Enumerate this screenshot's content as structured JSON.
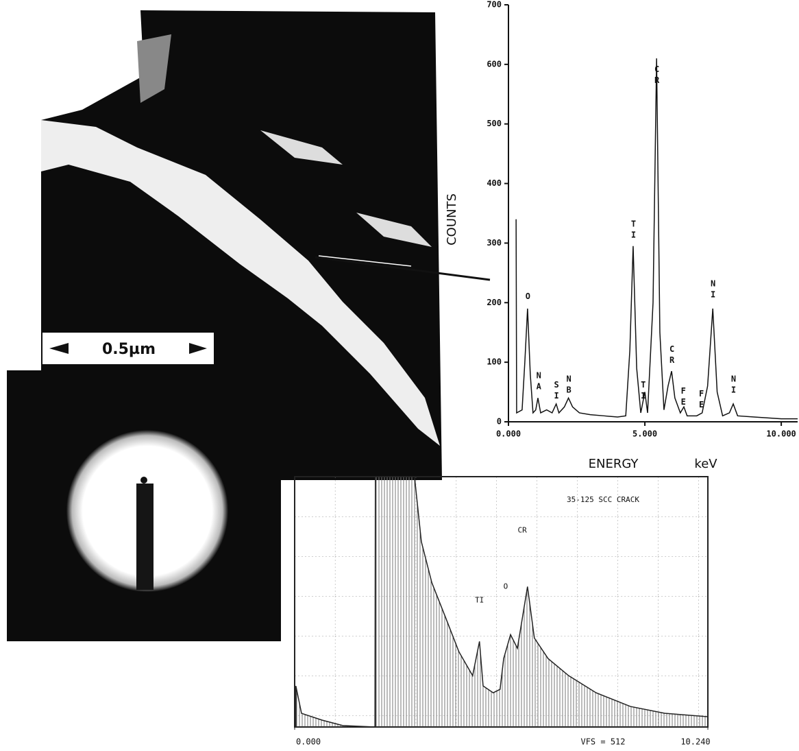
{
  "images": {
    "scale_bar_label": "0.5µm"
  },
  "chart_data": [
    {
      "type": "line",
      "ylabel": "COUNTS",
      "xlabel": "ENERGY",
      "xunit": "keV",
      "color": "#111111",
      "xlim": [
        0,
        10.6
      ],
      "ylim": [
        0,
        700
      ],
      "xticks": [
        {
          "value": 0,
          "label": "0.000"
        },
        {
          "value": 5,
          "label": "5.000"
        },
        {
          "value": 10,
          "label": "10.000"
        }
      ],
      "yticks": [
        0,
        100,
        200,
        300,
        400,
        500,
        600,
        700
      ],
      "x": [
        0.28,
        0.3,
        0.5,
        0.6,
        0.7,
        0.8,
        0.9,
        1.0,
        1.08,
        1.18,
        1.4,
        1.6,
        1.75,
        1.85,
        2.05,
        2.2,
        2.35,
        2.6,
        3.0,
        3.5,
        4.0,
        4.3,
        4.45,
        4.57,
        4.7,
        4.85,
        5.0,
        5.1,
        5.3,
        5.43,
        5.55,
        5.7,
        5.85,
        5.98,
        6.1,
        6.3,
        6.43,
        6.55,
        6.9,
        7.1,
        7.3,
        7.49,
        7.65,
        7.85,
        8.1,
        8.24,
        8.4,
        9.0,
        10.0,
        10.6
      ],
      "values": [
        340,
        15,
        20,
        100,
        190,
        80,
        15,
        20,
        40,
        15,
        20,
        15,
        30,
        15,
        25,
        40,
        25,
        15,
        12,
        10,
        8,
        10,
        120,
        295,
        90,
        15,
        50,
        15,
        200,
        610,
        150,
        20,
        60,
        85,
        40,
        15,
        25,
        10,
        10,
        15,
        60,
        190,
        50,
        10,
        15,
        30,
        10,
        8,
        5,
        5
      ],
      "annotations": [
        {
          "text": "O",
          "x": 0.7,
          "y": 219
        },
        {
          "text": "NA",
          "x": 1.1,
          "y": 86
        },
        {
          "text": "SI",
          "x": 1.75,
          "y": 70
        },
        {
          "text": "NB",
          "x": 2.2,
          "y": 80
        },
        {
          "text": "TI",
          "x": 4.57,
          "y": 340
        },
        {
          "text": "TI",
          "x": 4.93,
          "y": 70
        },
        {
          "text": "CR",
          "x": 5.43,
          "y": 600
        },
        {
          "text": "CR",
          "x": 5.98,
          "y": 130
        },
        {
          "text": "FE",
          "x": 6.4,
          "y": 60
        },
        {
          "text": "FE",
          "x": 7.06,
          "y": 55
        },
        {
          "text": "NI",
          "x": 7.49,
          "y": 240
        },
        {
          "text": "NI",
          "x": 8.24,
          "y": 80
        }
      ]
    },
    {
      "type": "area",
      "title": "35-125 SCC CRACK",
      "vfs_label": "VFS = 512",
      "color": "#222222",
      "xlim": [
        0,
        10.24
      ],
      "ylim": [
        0,
        512
      ],
      "xticks": [
        {
          "value": 0,
          "label": "0.000"
        },
        {
          "value": 10.24,
          "label": "10.240"
        }
      ],
      "x": [
        0.03,
        0.17,
        0.68,
        1.19,
        1.99,
        2.0,
        2.97,
        3.14,
        3.4,
        3.74,
        4.07,
        4.41,
        4.58,
        4.67,
        4.92,
        5.09,
        5.18,
        5.35,
        5.52,
        5.77,
        5.94,
        6.28,
        6.79,
        7.47,
        8.32,
        9.17,
        10.24
      ],
      "values": [
        84,
        28,
        14,
        3,
        0,
        512,
        512,
        379,
        295,
        224,
        154,
        105,
        175,
        84,
        70,
        77,
        140,
        189,
        161,
        287,
        182,
        140,
        105,
        70,
        42,
        28,
        21
      ],
      "annotations": [
        {
          "text": "CR",
          "x": 5.64,
          "y": 402
        },
        {
          "text": "O",
          "x": 5.23,
          "y": 287
        },
        {
          "text": "TI",
          "x": 4.58,
          "y": 259
        }
      ]
    }
  ]
}
